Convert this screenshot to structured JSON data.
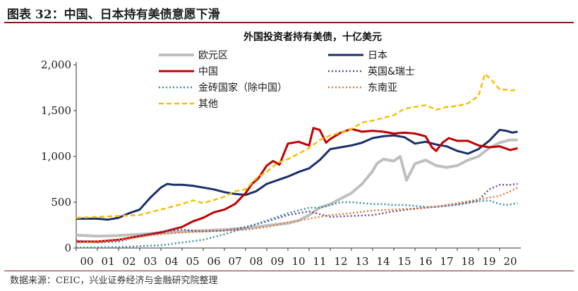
{
  "figure": {
    "label": "图表 32：中国、日本持有美债意愿下滑",
    "source": "数据来源：CEIC，兴业证券经济与金融研究院整理"
  },
  "chart_data": {
    "type": "line",
    "title": "外国投资者持有美债，十亿美元",
    "xlabel": "",
    "ylabel": "",
    "ylim": [
      0,
      2000
    ],
    "yticks": [
      0,
      500,
      1000,
      1500,
      2000
    ],
    "ytick_labels": [
      "0",
      "500",
      "1,000",
      "1,500",
      "2,000"
    ],
    "xlim": [
      2000,
      2021
    ],
    "xtick_labels": [
      "00",
      "01",
      "02",
      "03",
      "04",
      "05",
      "06",
      "07",
      "08",
      "09",
      "10",
      "11",
      "12",
      "13",
      "14",
      "15",
      "16",
      "17",
      "18",
      "19",
      "20"
    ],
    "grid": false,
    "legend_position": "top",
    "series": [
      {
        "name": "欧元区",
        "color": "#bfbfbf",
        "dash": "solid",
        "width": 4,
        "x": [
          2000,
          2001,
          2002,
          2003,
          2004,
          2005,
          2006,
          2007,
          2008,
          2009,
          2010,
          2010.5,
          2011,
          2011.5,
          2012,
          2012.5,
          2013,
          2013.5,
          2014,
          2014.2,
          2014.5,
          2015,
          2015.3,
          2015.6,
          2016,
          2016.5,
          2017,
          2017.5,
          2018,
          2018.5,
          2019,
          2019.5,
          2020,
          2020.5,
          2020.85
        ],
        "y": [
          140,
          130,
          135,
          150,
          165,
          180,
          190,
          200,
          215,
          245,
          270,
          300,
          360,
          440,
          480,
          540,
          600,
          700,
          840,
          920,
          970,
          950,
          1000,
          740,
          920,
          960,
          900,
          880,
          900,
          960,
          1000,
          1090,
          1150,
          1180,
          1180
        ]
      },
      {
        "name": "日本",
        "color": "#1a2f6b",
        "dash": "solid",
        "width": 3,
        "x": [
          2000,
          2001,
          2001.5,
          2002,
          2002.5,
          2003,
          2003.5,
          2004,
          2004.3,
          2004.6,
          2005,
          2005.5,
          2006,
          2006.5,
          2007,
          2007.5,
          2008,
          2008.5,
          2009,
          2009.5,
          2010,
          2010.5,
          2011,
          2011.5,
          2012,
          2012.5,
          2013,
          2013.5,
          2014,
          2014.5,
          2015,
          2015.5,
          2016,
          2016.5,
          2017,
          2017.5,
          2018,
          2018.5,
          2019,
          2019.5,
          2020,
          2020.3,
          2020.6,
          2020.85
        ],
        "y": [
          320,
          320,
          310,
          330,
          380,
          420,
          550,
          660,
          700,
          690,
          690,
          680,
          660,
          640,
          610,
          590,
          580,
          620,
          700,
          740,
          780,
          830,
          870,
          960,
          1080,
          1100,
          1120,
          1150,
          1200,
          1220,
          1230,
          1210,
          1140,
          1160,
          1130,
          1110,
          1060,
          1030,
          1080,
          1170,
          1290,
          1280,
          1260,
          1270
        ]
      },
      {
        "name": "中国",
        "color": "#c00000",
        "dash": "solid",
        "width": 3,
        "x": [
          2000,
          2001,
          2002,
          2003,
          2004,
          2005,
          2005.5,
          2006,
          2006.5,
          2007,
          2007.5,
          2008,
          2008.3,
          2008.6,
          2009,
          2009.3,
          2009.6,
          2010,
          2010.5,
          2011,
          2011.2,
          2011.5,
          2011.8,
          2012,
          2012.5,
          2013,
          2013.5,
          2014,
          2014.5,
          2015,
          2015.5,
          2016,
          2016.5,
          2016.8,
          2017,
          2017.3,
          2017.6,
          2018,
          2018.5,
          2019,
          2019.5,
          2020,
          2020.5,
          2020.85
        ],
        "y": [
          70,
          70,
          90,
          130,
          170,
          230,
          290,
          330,
          390,
          420,
          480,
          600,
          700,
          760,
          900,
          950,
          910,
          1140,
          1160,
          1120,
          1310,
          1290,
          1150,
          1190,
          1260,
          1300,
          1270,
          1280,
          1270,
          1250,
          1260,
          1250,
          1220,
          1100,
          1060,
          1150,
          1200,
          1170,
          1170,
          1120,
          1100,
          1110,
          1070,
          1090
        ]
      },
      {
        "name": "英国&瑞士",
        "color": "#6a4c93",
        "dash": "dot",
        "width": 2.5,
        "x": [
          2000,
          2001,
          2002,
          2003,
          2004,
          2005,
          2006,
          2007,
          2008,
          2009,
          2010,
          2011,
          2012,
          2013,
          2014,
          2015,
          2016,
          2017,
          2018,
          2019,
          2019.5,
          2020,
          2020.5,
          2020.85
        ],
        "y": [
          80,
          60,
          70,
          130,
          180,
          200,
          180,
          190,
          230,
          290,
          360,
          400,
          340,
          350,
          360,
          400,
          430,
          450,
          480,
          520,
          640,
          690,
          690,
          700
        ]
      },
      {
        "name": "金砖国家（除中国）",
        "color": "#3a8fa6",
        "dash": "dot",
        "width": 2.5,
        "x": [
          2000,
          2001,
          2002,
          2003,
          2004,
          2005,
          2006,
          2007,
          2008,
          2009,
          2010,
          2011,
          2011.5,
          2012,
          2012.5,
          2013,
          2013.5,
          2014,
          2014.5,
          2015,
          2015.5,
          2016,
          2016.5,
          2017,
          2017.5,
          2018,
          2018.5,
          2019,
          2019.5,
          2020,
          2020.3,
          2020.6,
          2020.85
        ],
        "y": [
          5,
          8,
          10,
          20,
          30,
          60,
          90,
          150,
          220,
          300,
          380,
          440,
          440,
          470,
          500,
          500,
          490,
          480,
          480,
          470,
          470,
          460,
          450,
          450,
          460,
          470,
          490,
          510,
          520,
          480,
          470,
          480,
          490
        ]
      },
      {
        "name": "东南亚",
        "color": "#e07b39",
        "dash": "dot",
        "width": 2.5,
        "x": [
          2000,
          2001,
          2002,
          2003,
          2004,
          2005,
          2006,
          2007,
          2008,
          2009,
          2010,
          2011,
          2012,
          2013,
          2014,
          2015,
          2016,
          2017,
          2018,
          2019,
          2020,
          2020.5,
          2020.85
        ],
        "y": [
          60,
          70,
          90,
          120,
          150,
          170,
          180,
          190,
          200,
          230,
          280,
          320,
          360,
          380,
          410,
          420,
          430,
          450,
          490,
          530,
          570,
          620,
          660
        ]
      },
      {
        "name": "其他",
        "color": "#f5c000",
        "dash": "dash",
        "width": 2.5,
        "x": [
          2000,
          2001,
          2002,
          2003,
          2004,
          2005,
          2005.5,
          2006,
          2007,
          2007.5,
          2008,
          2008.5,
          2009,
          2009.5,
          2010,
          2010.5,
          2011,
          2011.5,
          2012,
          2012.5,
          2013,
          2013.5,
          2014,
          2014.5,
          2015,
          2015.5,
          2016,
          2016.5,
          2017,
          2017.5,
          2018,
          2018.5,
          2019,
          2019.3,
          2019.6,
          2020,
          2020.3,
          2020.6,
          2020.85
        ],
        "y": [
          330,
          340,
          350,
          360,
          420,
          480,
          520,
          490,
          560,
          620,
          640,
          760,
          830,
          930,
          970,
          1030,
          1090,
          1180,
          1230,
          1260,
          1300,
          1370,
          1390,
          1420,
          1450,
          1520,
          1540,
          1560,
          1510,
          1540,
          1550,
          1580,
          1660,
          1900,
          1840,
          1730,
          1730,
          1720,
          1730
        ]
      }
    ]
  }
}
